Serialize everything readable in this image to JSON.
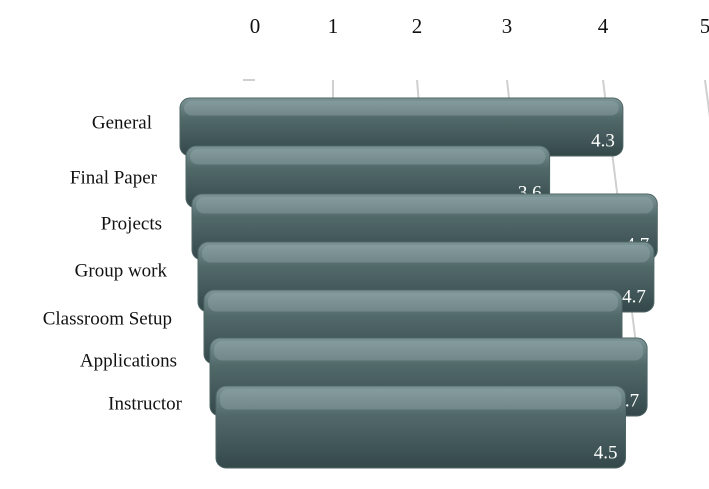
{
  "chart_data": {
    "type": "bar",
    "orientation": "horizontal",
    "categories": [
      "General",
      "Final Paper",
      "Projects",
      "Group work",
      "Classroom Setup",
      "Applications",
      "Instructor"
    ],
    "values": [
      4.3,
      3.6,
      4.7,
      4.7,
      4.4,
      4.7,
      4.5
    ],
    "color": "#4f6667",
    "xlim": [
      0,
      5
    ],
    "xticks": [
      0,
      1,
      2,
      3,
      4,
      5
    ],
    "grid": true
  }
}
